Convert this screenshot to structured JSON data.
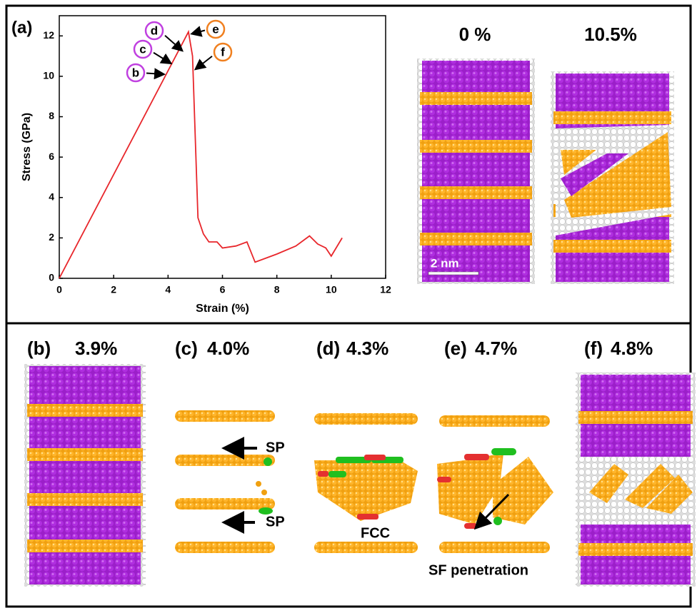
{
  "chart_data": {
    "type": "line",
    "panel_label": "(a)",
    "xlabel": "Strain (%)",
    "ylabel": "Stress (GPa)",
    "x": [
      0,
      4.75,
      4.9,
      5.1,
      5.3,
      5.5,
      5.8,
      6.0,
      6.5,
      6.9,
      7.2,
      8.0,
      8.7,
      9.2,
      9.5,
      9.8,
      10.0,
      10.4
    ],
    "values": [
      0,
      12.2,
      11.0,
      3.0,
      2.2,
      1.8,
      1.8,
      1.5,
      1.6,
      1.8,
      0.8,
      1.2,
      1.6,
      2.1,
      1.7,
      1.5,
      1.1,
      2.0
    ],
    "color": "#e8262b",
    "xlim": [
      0,
      12
    ],
    "ylim": [
      0,
      13
    ],
    "xticks": [
      0,
      2,
      4,
      6,
      8,
      10,
      12
    ],
    "yticks": [
      0,
      2,
      4,
      6,
      8,
      10,
      12
    ],
    "annotations": [
      "b",
      "c",
      "d",
      "e",
      "f"
    ]
  },
  "snapshots_top": {
    "titles": [
      "0 %",
      "10.5%"
    ],
    "scale_bar": "2 nm"
  },
  "snapshots_bottom": [
    {
      "label": "(b)",
      "strain": "3.9%"
    },
    {
      "label": "(c)",
      "strain": "4.0%",
      "notes": [
        "SP",
        "SP"
      ]
    },
    {
      "label": "(d)",
      "strain": "4.3%",
      "notes": [
        "FCC"
      ]
    },
    {
      "label": "(e)",
      "strain": "4.7%",
      "notes": [
        "SF penetration"
      ]
    },
    {
      "label": "(f)",
      "strain": "4.8%"
    }
  ]
}
